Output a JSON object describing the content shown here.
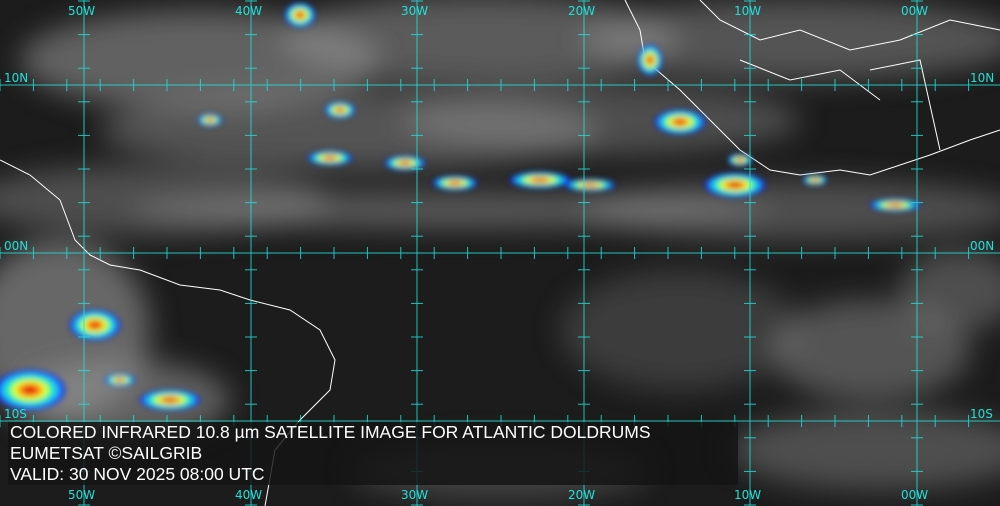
{
  "caption": {
    "title": "COLORED INFRARED 10.8 µm SATELLITE IMAGE FOR ATLANTIC DOLDRUMS",
    "credit": "EUMETSAT ©SAILGRIB",
    "valid": "VALID:  30 NOV 2025 08:00 UTC"
  },
  "grid": {
    "longitudes": [
      "50W",
      "40W",
      "30W",
      "20W",
      "10W",
      "00W"
    ],
    "latitudes": [
      "10N",
      "00N",
      "10S"
    ],
    "color": "#22e0d8"
  },
  "colors": {
    "background": "#1c1c1c",
    "cloud": "#9a9a9a",
    "coastline": "#ffffff",
    "convection_scale": [
      "#1030ff",
      "#20d0ff",
      "#20ff80",
      "#ffff20",
      "#ff8010",
      "#e01010"
    ]
  }
}
